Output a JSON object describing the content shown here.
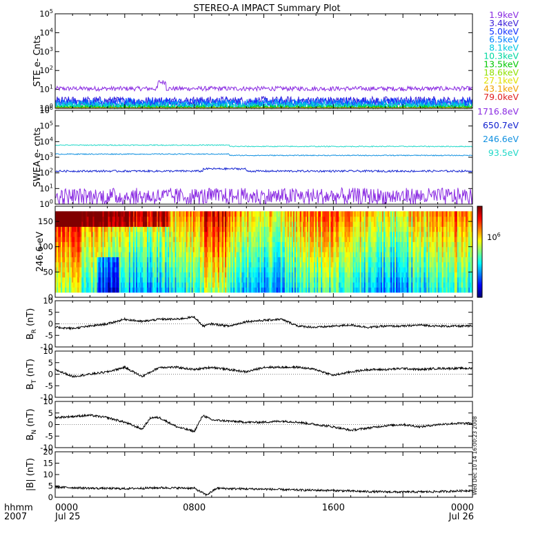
{
  "title": "STEREO-A IMPACT Summary Plot",
  "stamp": "Wed Dec 10 14 16:00:23 2008",
  "bottom_left": {
    "line1": "hhmm",
    "line2": "2007"
  },
  "x_axis": {
    "ticks": [
      {
        "t": 0,
        "top": "0000",
        "bottom": "Jul 25"
      },
      {
        "t": 8,
        "top": "0800",
        "bottom": ""
      },
      {
        "t": 16,
        "top": "1600",
        "bottom": ""
      },
      {
        "t": 24,
        "top": "0000",
        "bottom": "Jul 26"
      }
    ],
    "range": [
      0,
      24
    ]
  },
  "chart_data": [
    {
      "type": "line",
      "panel": "ste",
      "ylabel": "STE e- Cnts",
      "yscale": "log",
      "ylim": [
        1,
        100000
      ],
      "yticks": [
        {
          "base": "10",
          "exp": "0"
        },
        {
          "base": "10",
          "exp": "1"
        },
        {
          "base": "10",
          "exp": "2"
        },
        {
          "base": "10",
          "exp": "3"
        },
        {
          "base": "10",
          "exp": "4"
        },
        {
          "base": "10",
          "exp": "5"
        }
      ],
      "series": [
        {
          "name": "1.9keV",
          "color": "#8a2be2",
          "level": 11,
          "noise": 0.12
        },
        {
          "name": "3.4keV",
          "color": "#3b1fd8",
          "level": 2.4,
          "noise": 0.25
        },
        {
          "name": "5.0keV",
          "color": "#1030ff",
          "level": 2.0,
          "noise": 0.25
        },
        {
          "name": "6.5keV",
          "color": "#0080ff",
          "level": 1.7,
          "noise": 0.25
        },
        {
          "name": "8.1keV",
          "color": "#00c8e0",
          "level": 1.4,
          "noise": 0.2
        },
        {
          "name": "10.3keV",
          "color": "#00d8a0",
          "level": 1.2,
          "noise": 0.15
        },
        {
          "name": "13.5keV",
          "color": "#00c800",
          "level": 1.1,
          "noise": 0.1
        },
        {
          "name": "18.6keV",
          "color": "#90e000",
          "level": 1.05,
          "noise": 0.05
        },
        {
          "name": "27.1keV",
          "color": "#e0e000",
          "level": 1.03,
          "noise": 0.03
        },
        {
          "name": "43.1keV",
          "color": "#f0a000",
          "level": 1.02,
          "noise": 0.02
        },
        {
          "name": "79.0keV",
          "color": "#e02020",
          "level": 1.01,
          "noise": 0.01
        }
      ]
    },
    {
      "type": "line",
      "panel": "swea",
      "ylabel": "SWEA e- cnts",
      "yscale": "log",
      "ylim": [
        1,
        1000000
      ],
      "yticks": [
        {
          "base": "10",
          "exp": "0"
        },
        {
          "base": "10",
          "exp": "1"
        },
        {
          "base": "10",
          "exp": "2"
        },
        {
          "base": "10",
          "exp": "3"
        },
        {
          "base": "10",
          "exp": "4"
        },
        {
          "base": "10",
          "exp": "5"
        },
        {
          "base": "10",
          "exp": "6"
        }
      ],
      "series": [
        {
          "name": "1716.8eV",
          "color": "#8a2be2",
          "level": 4,
          "noise": 0.45
        },
        {
          "name": "650.7eV",
          "color": "#1020d0",
          "level": 130,
          "noise": 0.06
        },
        {
          "name": "246.6eV",
          "color": "#1090e0",
          "level": 1600,
          "noise": 0.03
        },
        {
          "name": "93.5eV",
          "color": "#20d8c8",
          "level": 6000,
          "noise": 0.03
        }
      ]
    },
    {
      "type": "heatmap",
      "panel": "pad",
      "ylabel": "246.6 eV",
      "ylim": [
        0,
        180
      ],
      "yticks": [
        "0",
        "50",
        "100",
        "150"
      ],
      "colorbar_label": {
        "base": "10",
        "exp": "6"
      }
    },
    {
      "type": "line",
      "panel": "br",
      "ylabel": {
        "main": "B",
        "sub": "R",
        "unit": " (nT)"
      },
      "ylim": [
        -10,
        10
      ],
      "yticks": [
        "-10",
        "-5",
        "0",
        "5",
        "10"
      ],
      "x": [
        0,
        1,
        2,
        3,
        4,
        5,
        6,
        7,
        8,
        8.5,
        9,
        10,
        11,
        12,
        13,
        14,
        15,
        16,
        17,
        18,
        19,
        20,
        21,
        22,
        23,
        24
      ],
      "y": [
        -1.5,
        -2,
        -1,
        0,
        2,
        1,
        2,
        2,
        3,
        -1,
        0,
        -1,
        1,
        1.5,
        2,
        -1,
        -1.5,
        -1,
        -0.5,
        -1.5,
        -1,
        -1,
        -0.5,
        -1,
        -1,
        -1
      ]
    },
    {
      "type": "line",
      "panel": "bt",
      "ylabel": {
        "main": "B",
        "sub": "T",
        "unit": " (nT)"
      },
      "ylim": [
        -10,
        10
      ],
      "yticks": [
        "-10",
        "-5",
        "0",
        "5",
        "10"
      ],
      "x": [
        0,
        1,
        2,
        3,
        4,
        5,
        6,
        7,
        8,
        9,
        10,
        11,
        12,
        13,
        14,
        15,
        16,
        17,
        18,
        19,
        20,
        21,
        22,
        23,
        24
      ],
      "y": [
        2,
        -1,
        0,
        1,
        3,
        -1,
        3,
        3,
        2,
        3,
        2,
        1,
        3,
        3,
        3,
        2,
        -0.5,
        1,
        2,
        2,
        2.5,
        2,
        2.5,
        2.5,
        2.5
      ]
    },
    {
      "type": "line",
      "panel": "bn",
      "ylabel": {
        "main": "B",
        "sub": "N",
        "unit": " (nT)"
      },
      "ylim": [
        -10,
        10
      ],
      "yticks": [
        "-10",
        "-5",
        "0",
        "5",
        "10"
      ],
      "x": [
        0,
        1,
        2,
        3,
        4,
        5,
        5.5,
        6,
        7,
        8,
        8.5,
        9,
        10,
        11,
        12,
        13,
        14,
        15,
        16,
        17,
        18,
        19,
        20,
        21,
        22,
        23,
        24
      ],
      "y": [
        3,
        3.5,
        4,
        3,
        1,
        -2,
        3,
        3,
        -1,
        -3,
        4,
        2,
        1.5,
        1,
        1,
        1.5,
        1,
        0,
        -1,
        -2.5,
        -1.5,
        -0.5,
        0,
        -1,
        0,
        0.5,
        0.5
      ]
    },
    {
      "type": "line",
      "panel": "bmag",
      "ylabel": {
        "main": "|B|",
        "sub": "",
        "unit": " (nT)"
      },
      "ylim": [
        0,
        20
      ],
      "yticks": [
        "0",
        "5",
        "10",
        "15",
        "20"
      ],
      "x": [
        0,
        2,
        4,
        6,
        8,
        8.7,
        9.3,
        10,
        12,
        14,
        16,
        18,
        20,
        22,
        24
      ],
      "y": [
        4.5,
        4,
        3.8,
        4.2,
        4,
        1,
        4,
        3.8,
        3.6,
        3.2,
        3,
        2.5,
        2.3,
        2.5,
        3
      ]
    }
  ]
}
